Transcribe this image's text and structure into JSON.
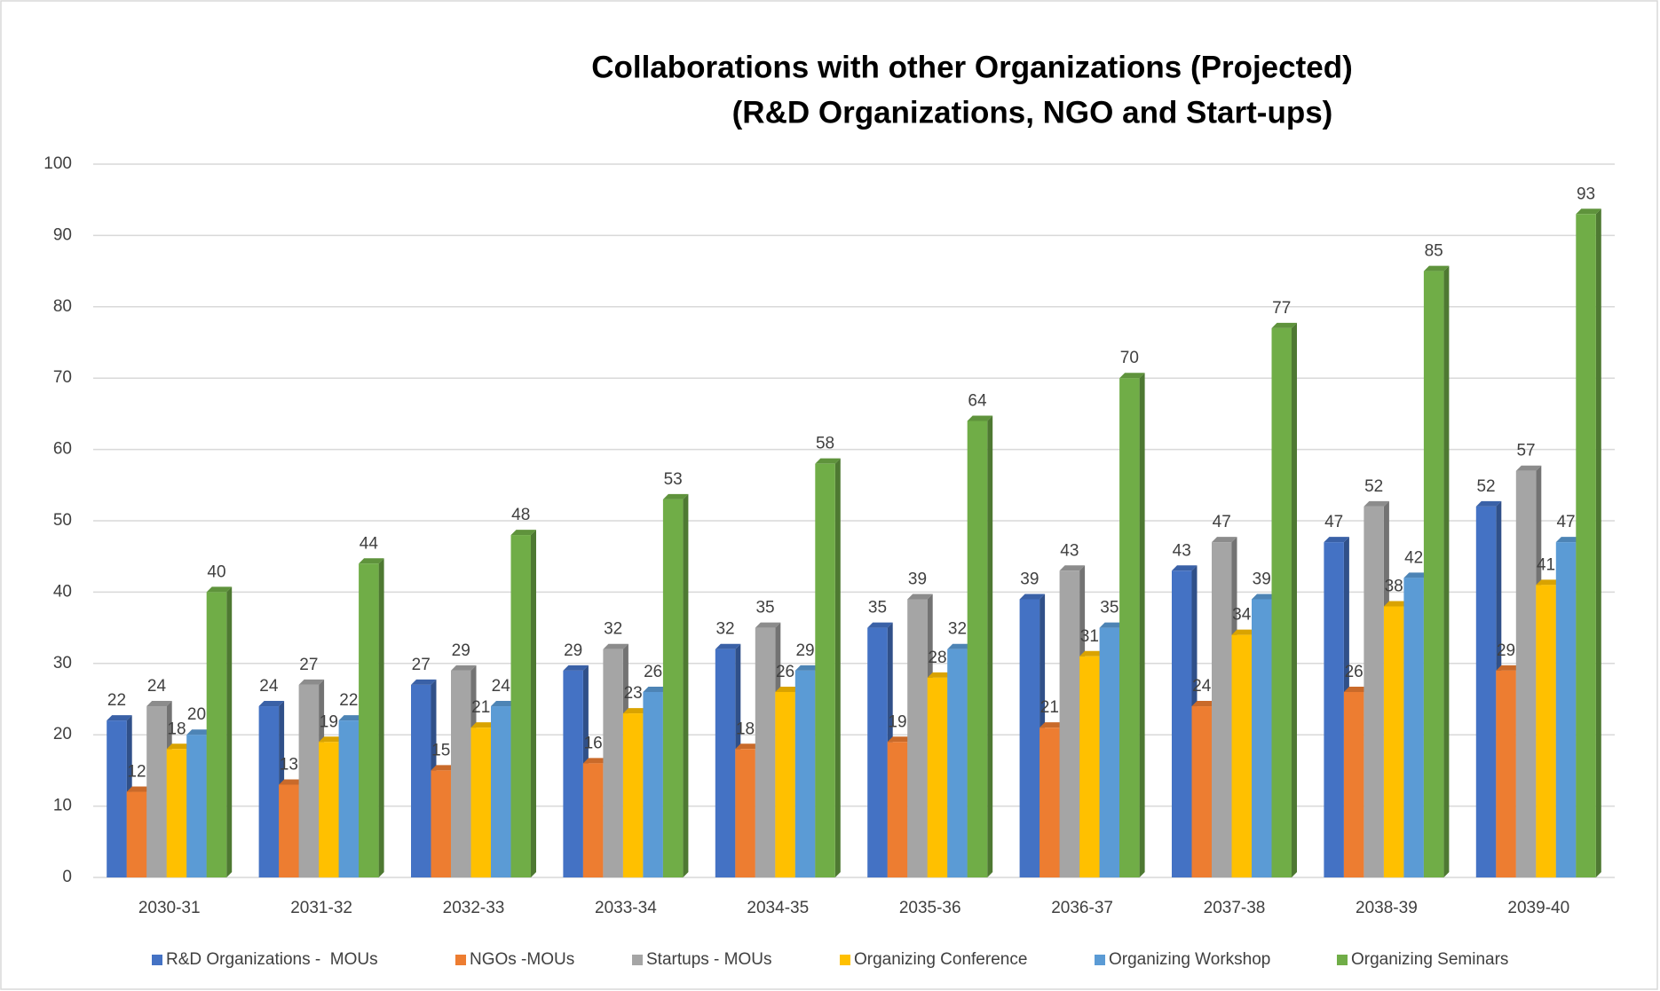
{
  "chart_data": {
    "type": "bar",
    "title": "Collaborations with other Organizations (Projected)",
    "subtitle": "(R&D Organizations, NGO and Start-ups)",
    "categories": [
      "2030-31",
      "2031-32",
      "2032-33",
      "2033-34",
      "2034-35",
      "2035-36",
      "2036-37",
      "2037-38",
      "2038-39",
      "2039-40"
    ],
    "series": [
      {
        "name": "R&D Organizations -  MOUs",
        "color": "#4472c4",
        "values": [
          22,
          24,
          27,
          29,
          32,
          35,
          39,
          43,
          47,
          52
        ]
      },
      {
        "name": "NGOs -MOUs",
        "color": "#ed7d31",
        "values": [
          12,
          13,
          15,
          16,
          18,
          19,
          21,
          24,
          26,
          29
        ]
      },
      {
        "name": "Startups - MOUs",
        "color": "#a5a5a5",
        "values": [
          24,
          27,
          29,
          32,
          35,
          39,
          43,
          47,
          52,
          57
        ]
      },
      {
        "name": "Organizing Conference",
        "color": "#ffc000",
        "values": [
          18,
          19,
          21,
          23,
          26,
          28,
          31,
          34,
          38,
          41
        ]
      },
      {
        "name": "Organizing Workshop",
        "color": "#5b9bd5",
        "values": [
          20,
          22,
          24,
          26,
          29,
          32,
          35,
          39,
          42,
          47
        ]
      },
      {
        "name": "Organizing Seminars",
        "color": "#70ad47",
        "values": [
          40,
          44,
          48,
          53,
          58,
          64,
          70,
          77,
          85,
          93
        ]
      }
    ],
    "ylim": [
      0,
      100
    ],
    "yticks": [
      0,
      10,
      20,
      30,
      40,
      50,
      60,
      70,
      80,
      90,
      100
    ],
    "grid": true,
    "legend": "bottom"
  }
}
